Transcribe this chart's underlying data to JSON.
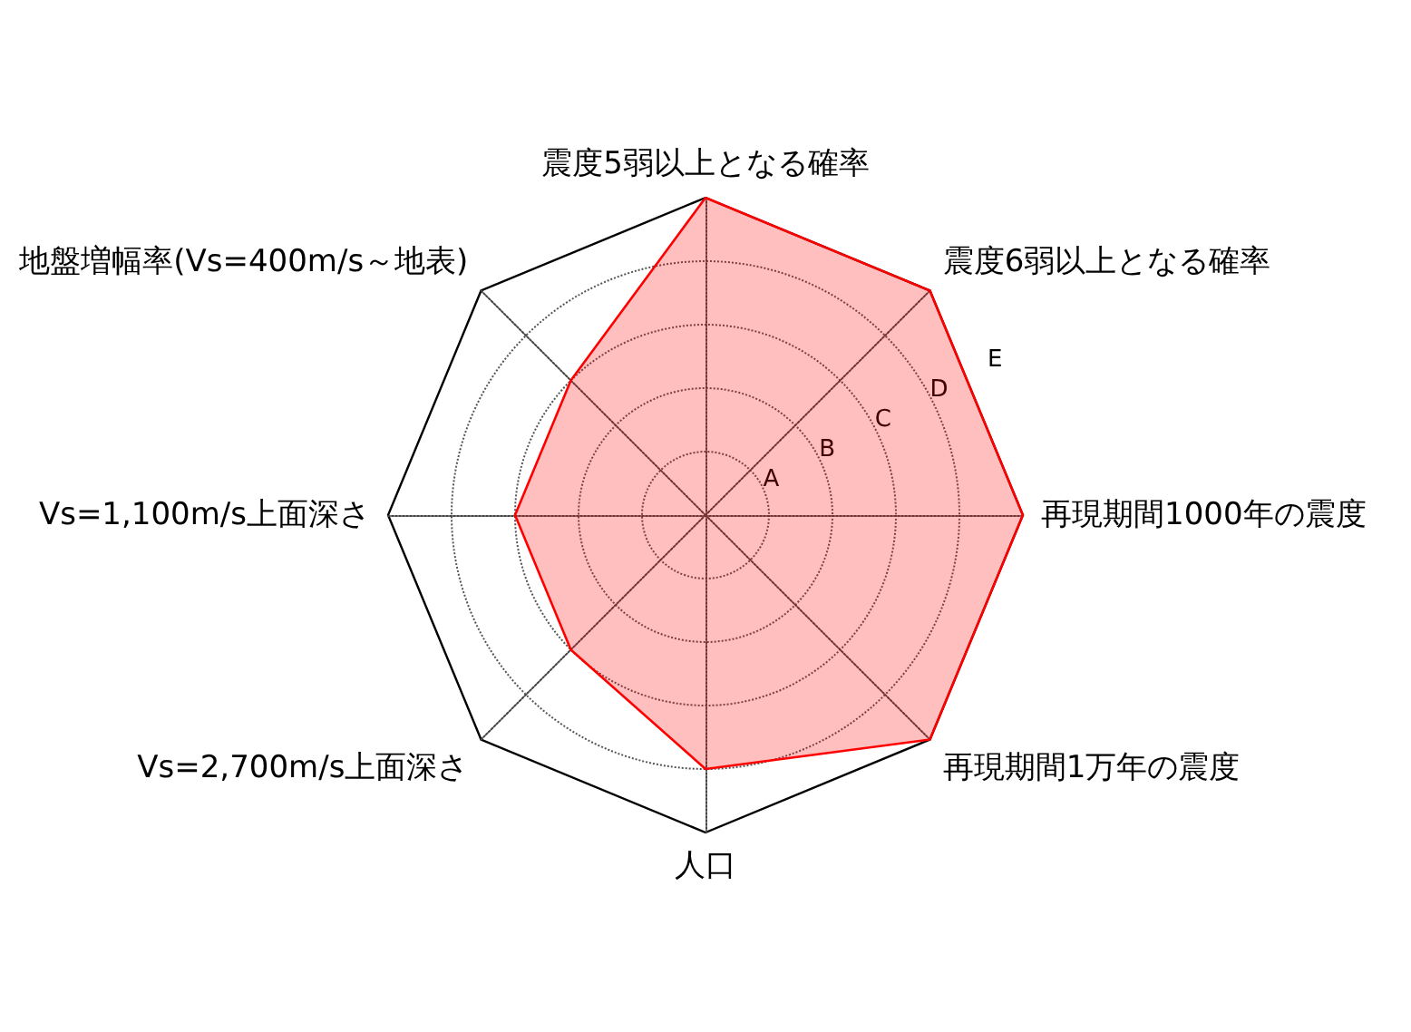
{
  "chart_data": {
    "type": "radar",
    "categories": [
      "震度5弱以上となる確率",
      "震度6弱以上となる確率",
      "再現期間1000年の震度",
      "再現期間1万年の震度",
      "人口",
      "Vs=2,700m/s上面深さ",
      "Vs=1,100m/s上面深さ",
      "地盤増幅率(Vs=400m/s～地表)"
    ],
    "series": [
      {
        "color": "#ff0000",
        "values": [
          5,
          5,
          5,
          5,
          4,
          3,
          3,
          3
        ]
      }
    ],
    "ylim": [
      0,
      5
    ],
    "yticks": [
      {
        "value": 1,
        "label": "A"
      },
      {
        "value": 2,
        "label": "B"
      },
      {
        "value": 3,
        "label": "C"
      },
      {
        "value": 4,
        "label": "D"
      },
      {
        "value": 5,
        "label": "E"
      }
    ],
    "grid": true,
    "line_style": "solid",
    "marker": "none"
  }
}
